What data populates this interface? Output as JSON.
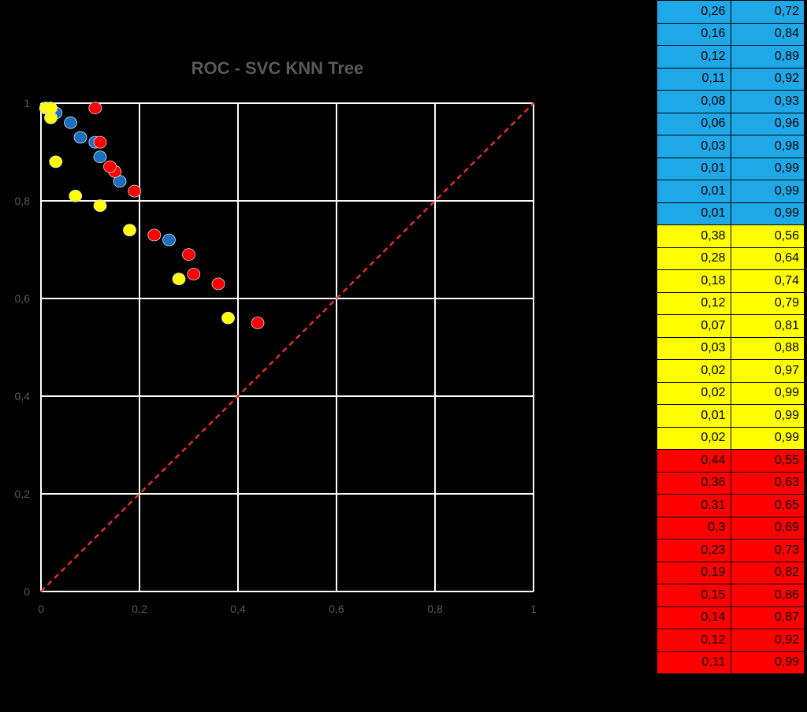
{
  "chart_data": {
    "type": "scatter",
    "title": "ROC - SVC KNN Tree",
    "xlabel": "",
    "ylabel": "",
    "xlim": [
      0,
      1
    ],
    "ylim": [
      0,
      1
    ],
    "xticks": [
      "0",
      "0,2",
      "0,4",
      "0,6",
      "0,8",
      "1"
    ],
    "yticks": [
      "0",
      "0,2",
      "0,4",
      "0,6",
      "0,8",
      "1"
    ],
    "grid": true,
    "diagonal": true,
    "series": [
      {
        "color": "#1a6fc0",
        "x": [
          0.26,
          0.16,
          0.12,
          0.11,
          0.08,
          0.06,
          0.03,
          0.01,
          0.01,
          0.01
        ],
        "y": [
          0.72,
          0.84,
          0.89,
          0.92,
          0.93,
          0.96,
          0.98,
          0.99,
          0.99,
          0.99
        ]
      },
      {
        "color": "#ffff00",
        "x": [
          0.38,
          0.28,
          0.18,
          0.12,
          0.07,
          0.03,
          0.02,
          0.02,
          0.01,
          0.02
        ],
        "y": [
          0.56,
          0.64,
          0.74,
          0.79,
          0.81,
          0.88,
          0.97,
          0.99,
          0.99,
          0.99
        ]
      },
      {
        "color": "#ff0000",
        "x": [
          0.44,
          0.36,
          0.31,
          0.3,
          0.23,
          0.19,
          0.15,
          0.14,
          0.12,
          0.11
        ],
        "y": [
          0.55,
          0.63,
          0.65,
          0.69,
          0.73,
          0.82,
          0.86,
          0.87,
          0.92,
          0.99
        ]
      }
    ]
  },
  "table": {
    "groups": [
      {
        "class": "blue",
        "rows": [
          [
            "0,26",
            "0,72"
          ],
          [
            "0,16",
            "0,84"
          ],
          [
            "0,12",
            "0,89"
          ],
          [
            "0,11",
            "0,92"
          ],
          [
            "0,08",
            "0,93"
          ],
          [
            "0,06",
            "0,96"
          ],
          [
            "0,03",
            "0,98"
          ],
          [
            "0,01",
            "0,99"
          ],
          [
            "0,01",
            "0,99"
          ],
          [
            "0,01",
            "0,99"
          ]
        ]
      },
      {
        "class": "yellow",
        "rows": [
          [
            "0,38",
            "0,56"
          ],
          [
            "0,28",
            "0,64"
          ],
          [
            "0,18",
            "0,74"
          ],
          [
            "0,12",
            "0,79"
          ],
          [
            "0,07",
            "0,81"
          ],
          [
            "0,03",
            "0,88"
          ],
          [
            "0,02",
            "0,97"
          ],
          [
            "0,02",
            "0,99"
          ],
          [
            "0,01",
            "0,99"
          ],
          [
            "0,02",
            "0,99"
          ]
        ]
      },
      {
        "class": "red",
        "rows": [
          [
            "0,44",
            "0,55"
          ],
          [
            "0,36",
            "0,63"
          ],
          [
            "0,31",
            "0,65"
          ],
          [
            "0,3",
            "0,69"
          ],
          [
            "0,23",
            "0,73"
          ],
          [
            "0,19",
            "0,82"
          ],
          [
            "0,15",
            "0,86"
          ],
          [
            "0,14",
            "0,87"
          ],
          [
            "0,12",
            "0,92"
          ],
          [
            "0,11",
            "0,99"
          ]
        ]
      }
    ]
  }
}
